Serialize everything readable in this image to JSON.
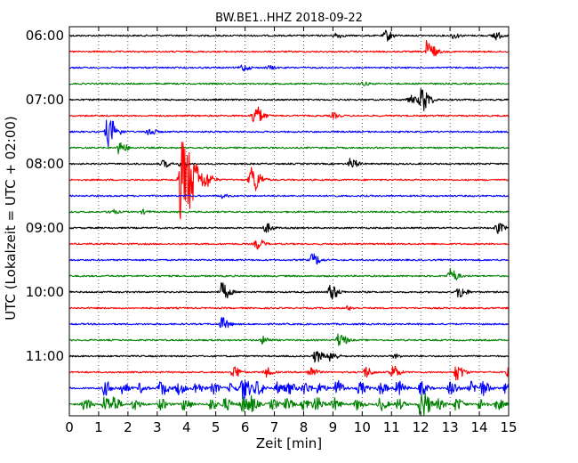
{
  "chart_data": {
    "type": "line",
    "title": "BW.BE1..HHZ 2018-09-22",
    "xlabel": "Zeit  [min]",
    "ylabel": "UTC (Lokalzeit = UTC + 02:00)",
    "xlim": [
      0,
      15
    ],
    "x_ticks": [
      "0",
      "1",
      "2",
      "3",
      "4",
      "5",
      "6",
      "7",
      "8",
      "9",
      "10",
      "11",
      "12",
      "13",
      "14",
      "15"
    ],
    "hour_labels": [
      "06:00",
      "07:00",
      "08:00",
      "09:00",
      "10:00",
      "11:00"
    ],
    "grid": true,
    "colors": [
      "#000000",
      "#ff0000",
      "#0000ff",
      "#008000"
    ],
    "traces": [
      {
        "start": "06:00",
        "events": [
          [
            9.1,
            3
          ],
          [
            10.8,
            6
          ],
          [
            13.1,
            3
          ],
          [
            14.5,
            5
          ]
        ]
      },
      {
        "start": "06:15",
        "events": [
          [
            12.2,
            12
          ]
        ]
      },
      {
        "start": "06:30",
        "events": [
          [
            5.9,
            4
          ],
          [
            6.8,
            2
          ]
        ]
      },
      {
        "start": "06:45",
        "events": [
          [
            10.0,
            2
          ]
        ]
      },
      {
        "start": "07:00",
        "events": [
          [
            12.0,
            14
          ],
          [
            11.6,
            5
          ]
        ]
      },
      {
        "start": "07:15",
        "events": [
          [
            6.3,
            12
          ],
          [
            9.0,
            3
          ]
        ]
      },
      {
        "start": "07:30",
        "events": [
          [
            1.3,
            16
          ],
          [
            2.7,
            5
          ]
        ]
      },
      {
        "start": "07:45",
        "events": [
          [
            1.7,
            7
          ]
        ]
      },
      {
        "start": "08:00",
        "events": [
          [
            3.2,
            4
          ],
          [
            3.8,
            3
          ],
          [
            9.6,
            6
          ]
        ]
      },
      {
        "start": "08:15",
        "events": [
          [
            3.8,
            45
          ],
          [
            6.2,
            16
          ],
          [
            4.7,
            5
          ]
        ]
      },
      {
        "start": "08:30",
        "events": [
          [
            5.2,
            2
          ]
        ]
      },
      {
        "start": "08:45",
        "events": [
          [
            1.4,
            3
          ],
          [
            2.5,
            2
          ]
        ]
      },
      {
        "start": "09:00",
        "events": [
          [
            6.7,
            5
          ],
          [
            14.6,
            6
          ]
        ]
      },
      {
        "start": "09:15",
        "events": [
          [
            6.4,
            6
          ]
        ]
      },
      {
        "start": "09:30",
        "events": [
          [
            8.3,
            7
          ]
        ]
      },
      {
        "start": "09:45",
        "events": [
          [
            13.0,
            8
          ]
        ]
      },
      {
        "start": "10:00",
        "events": [
          [
            5.2,
            10
          ],
          [
            8.9,
            9
          ],
          [
            13.3,
            7
          ]
        ]
      },
      {
        "start": "10:15",
        "events": [
          [
            9.5,
            2
          ]
        ]
      },
      {
        "start": "10:30",
        "events": [
          [
            5.2,
            7
          ]
        ]
      },
      {
        "start": "10:45",
        "events": [
          [
            6.6,
            4
          ],
          [
            9.2,
            8
          ]
        ]
      },
      {
        "start": "11:00",
        "events": [
          [
            8.4,
            7
          ],
          [
            8.9,
            6
          ],
          [
            11.1,
            2
          ]
        ]
      },
      {
        "start": "11:15",
        "events": [
          [
            5.6,
            7
          ],
          [
            6.7,
            5
          ],
          [
            8.2,
            6
          ],
          [
            10.1,
            6
          ],
          [
            11.0,
            8
          ],
          [
            13.2,
            9
          ],
          [
            15.0,
            6
          ]
        ]
      },
      {
        "start": "11:30",
        "events": [
          [
            1.2,
            8
          ],
          [
            1.8,
            6
          ],
          [
            2.4,
            5
          ],
          [
            3.1,
            9
          ],
          [
            3.7,
            7
          ],
          [
            4.3,
            7
          ],
          [
            4.9,
            6
          ],
          [
            5.5,
            5
          ],
          [
            5.9,
            13
          ],
          [
            6.4,
            8
          ],
          [
            7.1,
            7
          ],
          [
            7.5,
            6
          ],
          [
            8.0,
            7
          ],
          [
            8.5,
            6
          ],
          [
            9.1,
            9
          ],
          [
            9.9,
            7
          ],
          [
            10.6,
            7
          ],
          [
            11.2,
            8
          ],
          [
            12.0,
            7
          ],
          [
            13.0,
            8
          ],
          [
            13.7,
            7
          ],
          [
            14.1,
            8
          ],
          [
            14.9,
            6
          ]
        ]
      },
      {
        "start": "11:45",
        "events": [
          [
            0.5,
            7
          ],
          [
            1.2,
            9
          ],
          [
            1.5,
            7
          ],
          [
            2.2,
            6
          ],
          [
            3.1,
            6
          ],
          [
            3.9,
            7
          ],
          [
            4.8,
            6
          ],
          [
            5.3,
            7
          ],
          [
            5.9,
            9
          ],
          [
            6.2,
            7
          ],
          [
            6.9,
            6
          ],
          [
            7.4,
            6
          ],
          [
            8.0,
            7
          ],
          [
            8.4,
            8
          ],
          [
            9.0,
            7
          ],
          [
            9.8,
            6
          ],
          [
            10.6,
            7
          ],
          [
            11.2,
            6
          ],
          [
            12.0,
            16
          ],
          [
            12.6,
            5
          ],
          [
            13.2,
            7
          ],
          [
            14.0,
            6
          ],
          [
            14.6,
            6
          ]
        ]
      }
    ]
  }
}
